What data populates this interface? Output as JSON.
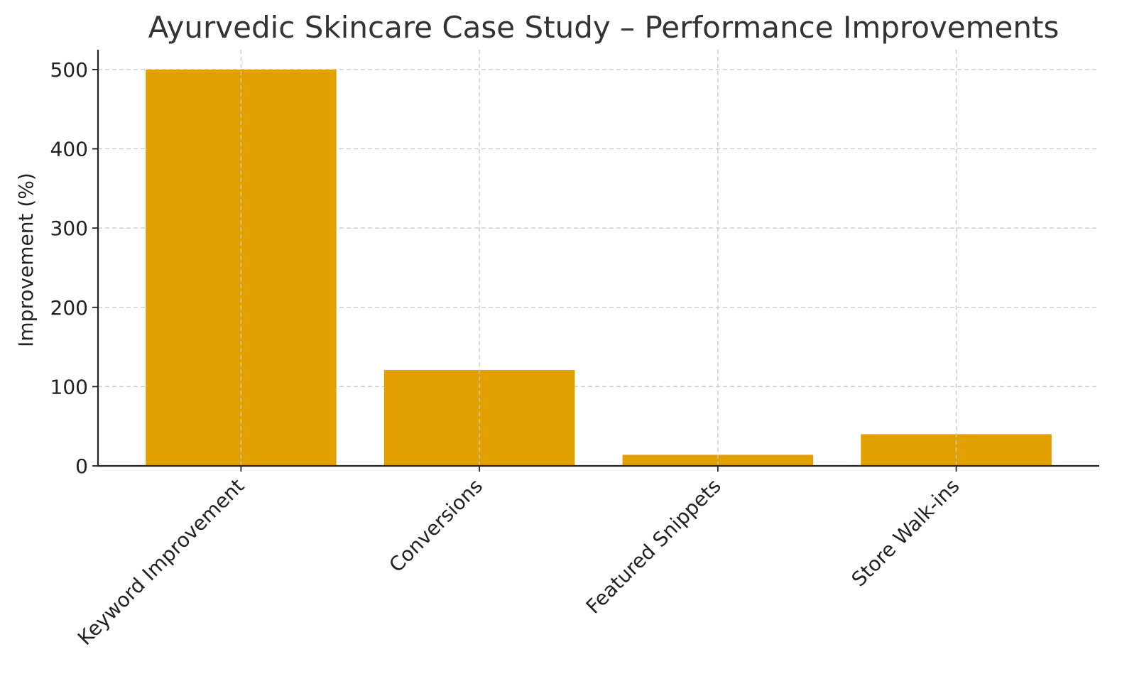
{
  "chart_data": {
    "type": "bar",
    "title": "Ayurvedic Skincare Case Study – Performance Improvements",
    "xlabel": "",
    "ylabel": "Improvement (%)",
    "categories": [
      "Keyword Improvement",
      "Conversions",
      "Featured Snippets",
      "Store Walk-ins"
    ],
    "values": [
      500,
      121,
      14,
      40
    ],
    "ylim": [
      0,
      525
    ],
    "yticks": [
      0,
      100,
      200,
      300,
      400,
      500
    ],
    "grid": true,
    "bar_color": "#E3A100"
  }
}
